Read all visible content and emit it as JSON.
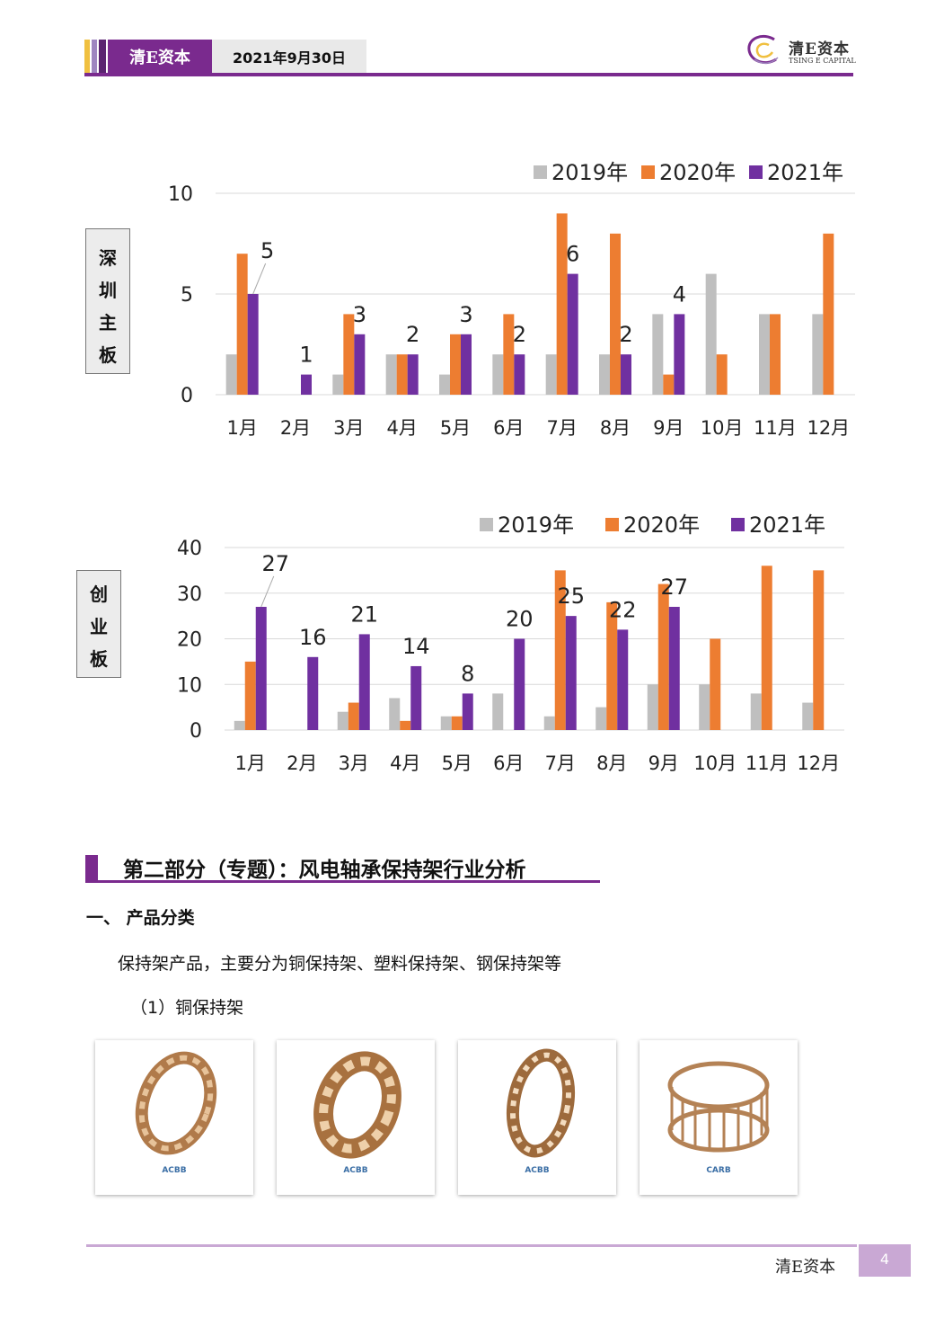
{
  "header": {
    "brand": "清E资本",
    "date": "2021年9月30日",
    "logo_cn": "清E资本",
    "logo_en": "TSING E CAPITAL",
    "colors": {
      "purple": "#7a2a8e",
      "gold": "#f0c040",
      "lavender": "#9f86c0"
    }
  },
  "charts": [
    {
      "side_label": [
        "深",
        "圳",
        "主",
        "板"
      ],
      "chart_data": {
        "type": "bar",
        "categories": [
          "1月",
          "2月",
          "3月",
          "4月",
          "5月",
          "6月",
          "7月",
          "8月",
          "9月",
          "10月",
          "11月",
          "12月"
        ],
        "series": [
          {
            "name": "2019年",
            "color": "#bfbfbf",
            "values": [
              2,
              0,
              1,
              2,
              1,
              2,
              2,
              2,
              4,
              6,
              4,
              4
            ]
          },
          {
            "name": "2020年",
            "color": "#ed7d31",
            "values": [
              7,
              0,
              4,
              2,
              3,
              4,
              9,
              8,
              1,
              2,
              4,
              8
            ]
          },
          {
            "name": "2021年",
            "color": "#7030a0",
            "values": [
              5,
              1,
              3,
              2,
              3,
              2,
              6,
              2,
              4,
              null,
              null,
              null
            ]
          }
        ],
        "data_labels": [
          "5",
          "1",
          "3",
          "2",
          "3",
          "2",
          "6",
          "2",
          "4"
        ],
        "ylim": [
          0,
          10
        ],
        "yticks": [
          "0",
          "5",
          "10"
        ],
        "grid": true,
        "legend": "top-right"
      }
    },
    {
      "side_label": [
        "创",
        "业",
        "板"
      ],
      "chart_data": {
        "type": "bar",
        "categories": [
          "1月",
          "2月",
          "3月",
          "4月",
          "5月",
          "6月",
          "7月",
          "8月",
          "9月",
          "10月",
          "11月",
          "12月"
        ],
        "series": [
          {
            "name": "2019年",
            "color": "#bfbfbf",
            "values": [
              2,
              0,
              4,
              7,
              3,
              8,
              3,
              5,
              10,
              10,
              8,
              6
            ]
          },
          {
            "name": "2020年",
            "color": "#ed7d31",
            "values": [
              15,
              0,
              6,
              2,
              3,
              0,
              35,
              28,
              32,
              20,
              36,
              35
            ]
          },
          {
            "name": "2021年",
            "color": "#7030a0",
            "values": [
              27,
              16,
              21,
              14,
              8,
              20,
              25,
              22,
              27,
              null,
              null,
              null
            ]
          }
        ],
        "data_labels": [
          "27",
          "16",
          "21",
          "14",
          "8",
          "20",
          "25",
          "22",
          "27"
        ],
        "ylim": [
          0,
          40
        ],
        "yticks": [
          "0",
          "10",
          "20",
          "30",
          "40"
        ],
        "grid": true,
        "legend": "top-right"
      }
    }
  ],
  "section": {
    "title": "第二部分（专题）：风电轴承保持架行业分析",
    "heading1": "一、 产品分类",
    "para1": "保持架产品，主要分为铜保持架、塑料保持架、钢保持架等",
    "para2": "（1）铜保持架",
    "products": [
      {
        "caption": "ACBB"
      },
      {
        "caption": "ACBB"
      },
      {
        "caption": "ACBB"
      },
      {
        "caption": "CARB"
      }
    ]
  },
  "footer": {
    "name": "清E资本",
    "page": "4"
  }
}
